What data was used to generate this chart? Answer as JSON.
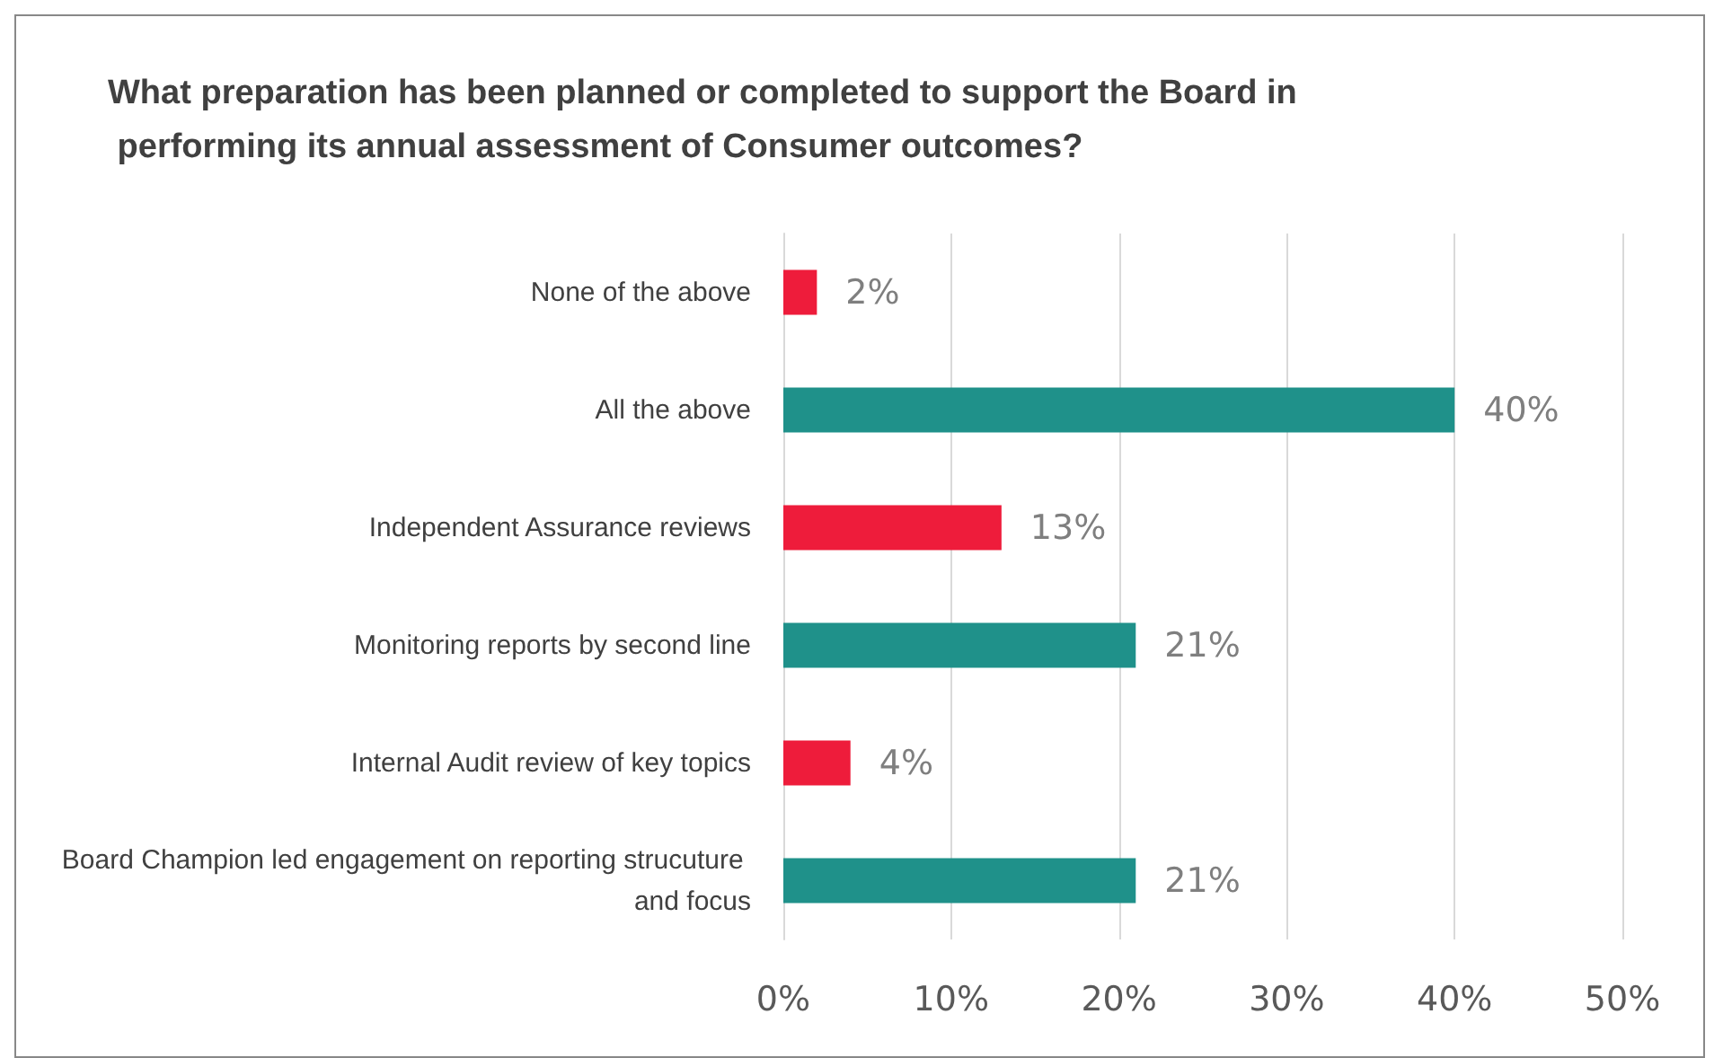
{
  "chart_data": {
    "type": "bar",
    "orientation": "horizontal",
    "title": "What preparation has been planned or completed to support the Board in performing its annual assessment of Consumer outcomes?",
    "categories": [
      "None of the above",
      "All the above",
      "Independent Assurance reviews",
      "Monitoring reports by second line",
      "Internal Audit review of key topics",
      "Board Champion led engagement on reporting strucuture and focus"
    ],
    "values": [
      2,
      40,
      13,
      21,
      4,
      21
    ],
    "colors": [
      "#ee1c3b",
      "#1f918a",
      "#ee1c3b",
      "#1f918a",
      "#ee1c3b",
      "#1f918a"
    ],
    "value_labels": [
      "2%",
      "40%",
      "13%",
      "21%",
      "4%",
      "21%"
    ],
    "xlim": [
      0,
      50
    ],
    "xticks": [
      {
        "value": 0,
        "label": "0%"
      },
      {
        "value": 10,
        "label": "10%"
      },
      {
        "value": 20,
        "label": "20%"
      },
      {
        "value": 30,
        "label": "30%"
      },
      {
        "value": 40,
        "label": "40%"
      },
      {
        "value": 50,
        "label": "50%"
      }
    ],
    "grid": "x"
  }
}
